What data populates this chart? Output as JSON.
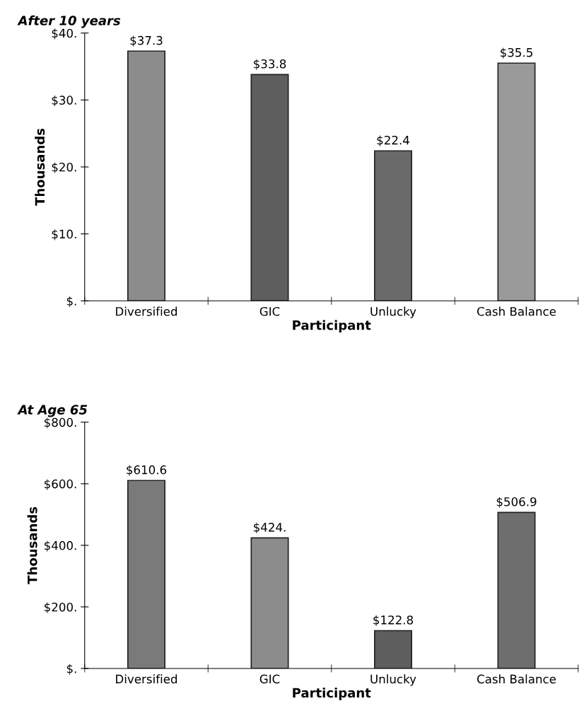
{
  "chart_data": [
    {
      "type": "bar",
      "title": "After 10 years",
      "xlabel": "Participant",
      "ylabel": "Thousands",
      "categories": [
        "Diversified",
        "GIC",
        "Unlucky",
        "Cash Balance"
      ],
      "values": [
        37.3,
        33.8,
        22.4,
        35.5
      ],
      "colors": [
        "#8c8c8c",
        "#5e5e5e",
        "#6a6a6a",
        "#9a9a9a"
      ],
      "value_labels": [
        "$37.3",
        "$33.8",
        "$22.4",
        "$35.5"
      ],
      "ylim": [
        0,
        40
      ],
      "yticks": [
        {
          "value": 0,
          "label": "$."
        },
        {
          "value": 10,
          "label": "$10."
        },
        {
          "value": 20,
          "label": "$20."
        },
        {
          "value": 30,
          "label": "$30."
        },
        {
          "value": 40,
          "label": "$40."
        }
      ],
      "grid": false,
      "legend": false
    },
    {
      "type": "bar",
      "title": "At Age 65",
      "xlabel": "Participant",
      "ylabel": "Thousands",
      "categories": [
        "Diversified",
        "GIC",
        "Unlucky",
        "Cash Balance"
      ],
      "values": [
        610.6,
        424,
        122.8,
        506.9
      ],
      "colors": [
        "#7a7a7a",
        "#8c8c8c",
        "#5e5e5e",
        "#6e6e6e"
      ],
      "value_labels": [
        "$610.6",
        "$424.",
        "$122.8",
        "$506.9"
      ],
      "ylim": [
        0,
        800
      ],
      "yticks": [
        {
          "value": 0,
          "label": "$."
        },
        {
          "value": 200,
          "label": "$200."
        },
        {
          "value": 400,
          "label": "$400."
        },
        {
          "value": 600,
          "label": "$600."
        },
        {
          "value": 800,
          "label": "$800."
        }
      ],
      "grid": false,
      "legend": false
    }
  ]
}
